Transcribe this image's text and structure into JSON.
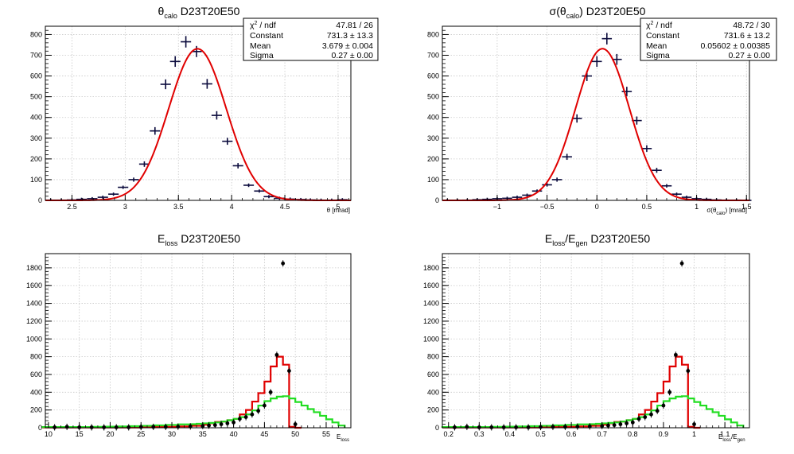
{
  "chart_data": [
    {
      "type": "histogram",
      "title": "θ_calo D23T20E50",
      "xlabel": "θ [mrad]",
      "ylabel": "",
      "xlim": [
        2.25,
        5.12
      ],
      "ylim": [
        0,
        840
      ],
      "xticks": [
        "2.5",
        "3",
        "3.5",
        "4",
        "4.5",
        "5"
      ],
      "yticks": [
        "0",
        "100",
        "200",
        "300",
        "400",
        "500",
        "600",
        "700",
        "800"
      ],
      "grid": true,
      "data_points": {
        "x": [
          2.3,
          2.4,
          2.5,
          2.59,
          2.69,
          2.79,
          2.89,
          2.98,
          3.08,
          3.18,
          3.28,
          3.38,
          3.47,
          3.57,
          3.67,
          3.77,
          3.86,
          3.96,
          4.06,
          4.16,
          4.26,
          4.35,
          4.45,
          4.55,
          4.65,
          4.74,
          4.84,
          4.94,
          5.04
        ],
        "y": [
          1,
          1,
          2,
          5,
          8,
          15,
          30,
          63,
          100,
          175,
          335,
          560,
          670,
          765,
          718,
          562,
          410,
          285,
          167,
          73,
          45,
          18,
          10,
          6,
          4,
          2,
          1,
          1,
          3
        ],
        "xerr": 0.049
      },
      "fit_curve": {
        "function": "gaus",
        "constant": 731.3,
        "mean": 3.679,
        "sigma": 0.27
      },
      "stats_box": {
        "placement": "top-right",
        "rows": [
          {
            "label": "χ² / ndf",
            "value": "47.81 / 26"
          },
          {
            "label": "Constant",
            "value": "731.3 ± 13.3"
          },
          {
            "label": "Mean",
            "value": "3.679 ± 0.004"
          },
          {
            "label": "Sigma",
            "value": "0.27 ± 0.00"
          }
        ]
      },
      "colors": {
        "points": "#0a0a3c",
        "fit": "#e00000"
      }
    },
    {
      "type": "histogram",
      "title": "σ(θ_calo) D23T20E50",
      "xlabel": "σ(θ_calo) [mrad]",
      "ylabel": "",
      "xlim": [
        -1.55,
        1.53
      ],
      "ylim": [
        0,
        840
      ],
      "xticks": [
        "−1",
        "−0.5",
        "0",
        "0.5",
        "1",
        "1.5"
      ],
      "yticks": [
        "0",
        "100",
        "200",
        "300",
        "400",
        "500",
        "600",
        "700",
        "800"
      ],
      "grid": true,
      "data_points": {
        "x": [
          -1.5,
          -1.4,
          -1.3,
          -1.2,
          -1.1,
          -1.0,
          -0.9,
          -0.8,
          -0.7,
          -0.6,
          -0.5,
          -0.4,
          -0.3,
          -0.2,
          -0.1,
          0.0,
          0.1,
          0.2,
          0.3,
          0.4,
          0.5,
          0.6,
          0.7,
          0.8,
          0.9,
          1.0,
          1.1,
          1.2,
          1.3,
          1.4,
          1.5
        ],
        "y": [
          0,
          0,
          1,
          3,
          5,
          8,
          10,
          15,
          25,
          45,
          75,
          100,
          210,
          395,
          600,
          670,
          780,
          680,
          525,
          385,
          250,
          145,
          70,
          30,
          15,
          8,
          5,
          2,
          1,
          1,
          0
        ],
        "xerr": 0.05
      },
      "fit_curve": {
        "function": "gaus",
        "constant": 731.6,
        "mean": 0.05602,
        "sigma": 0.27
      },
      "stats_box": {
        "placement": "top-right",
        "rows": [
          {
            "label": "χ² / ndf",
            "value": "48.72 / 30"
          },
          {
            "label": "Constant",
            "value": "731.6 ± 13.2"
          },
          {
            "label": "Mean",
            "value": "0.05602 ± 0.00385"
          },
          {
            "label": "Sigma",
            "value": "0.27 ± 0.00"
          }
        ]
      },
      "colors": {
        "points": "#0a0a3c",
        "fit": "#e00000"
      }
    },
    {
      "type": "histogram",
      "title": "E_loss D23T20E50",
      "xlabel": "E_loss",
      "ylabel": "",
      "xlim": [
        9.5,
        59.0
      ],
      "ylim": [
        0,
        1960
      ],
      "xticks": [
        "10",
        "15",
        "20",
        "25",
        "30",
        "35",
        "40",
        "45",
        "50",
        "55"
      ],
      "yticks": [
        "0",
        "200",
        "400",
        "600",
        "800",
        "1000",
        "1200",
        "1400",
        "1600",
        "1800"
      ],
      "grid": true,
      "series": [
        {
          "style": "markers",
          "x": [
            11,
            13,
            15,
            17,
            19,
            21,
            23,
            25,
            27,
            29,
            31,
            33,
            35,
            36,
            37,
            38,
            39,
            40,
            41,
            42,
            43,
            44,
            45,
            46,
            47,
            48,
            49,
            50
          ],
          "y": [
            5,
            10,
            5,
            5,
            5,
            5,
            5,
            8,
            10,
            10,
            12,
            15,
            20,
            25,
            30,
            40,
            50,
            60,
            100,
            120,
            150,
            190,
            250,
            400,
            820,
            1850,
            640,
            40
          ]
        },
        {
          "style": "step",
          "edges": [
            9,
            11,
            13,
            15,
            17,
            19,
            21,
            23,
            25,
            27,
            29,
            31,
            33,
            35,
            36,
            37,
            38,
            39,
            40,
            41,
            42,
            43,
            44,
            45,
            46,
            47,
            48,
            49,
            50,
            51
          ],
          "values": [
            3,
            3,
            3,
            3,
            3,
            3,
            3,
            3,
            5,
            8,
            10,
            15,
            22,
            35,
            50,
            65,
            70,
            85,
            100,
            150,
            200,
            295,
            390,
            520,
            690,
            800,
            710,
            10,
            0
          ]
        },
        {
          "style": "step",
          "edges": [
            9,
            11,
            13,
            15,
            17,
            19,
            21,
            23,
            25,
            27,
            29,
            31,
            33,
            34,
            35,
            36,
            37,
            38,
            39,
            40,
            41,
            42,
            43,
            44,
            45,
            46,
            47,
            48,
            49,
            50,
            51,
            52,
            53,
            54,
            55,
            56,
            57,
            58
          ],
          "values": [
            8,
            8,
            8,
            8,
            10,
            12,
            15,
            18,
            22,
            27,
            32,
            38,
            40,
            45,
            50,
            55,
            60,
            70,
            85,
            100,
            120,
            150,
            195,
            250,
            300,
            330,
            350,
            355,
            330,
            290,
            250,
            210,
            175,
            135,
            95,
            60,
            25
          ]
        }
      ],
      "colors": {
        "markers": "#000000",
        "red_step": "#e00000",
        "green_step": "#22dd22"
      }
    },
    {
      "type": "histogram",
      "title": "E_loss/E_gen D23T20E50",
      "xlabel": "E_loss/E_gen",
      "ylabel": "",
      "xlim": [
        0.18,
        1.18
      ],
      "ylim": [
        0,
        1960
      ],
      "xticks": [
        "0.2",
        "0.3",
        "0.4",
        "0.5",
        "0.6",
        "0.7",
        "0.8",
        "0.9",
        "1",
        "1.1"
      ],
      "yticks": [
        "0",
        "200",
        "400",
        "600",
        "800",
        "1000",
        "1200",
        "1400",
        "1600",
        "1800"
      ],
      "grid": true,
      "series": [
        {
          "style": "markers",
          "x": [
            0.22,
            0.26,
            0.3,
            0.34,
            0.38,
            0.42,
            0.46,
            0.5,
            0.54,
            0.58,
            0.62,
            0.66,
            0.7,
            0.72,
            0.74,
            0.76,
            0.78,
            0.8,
            0.82,
            0.84,
            0.86,
            0.88,
            0.9,
            0.92,
            0.94,
            0.96,
            0.98,
            1.0
          ],
          "y": [
            5,
            10,
            5,
            5,
            5,
            5,
            5,
            8,
            10,
            10,
            12,
            15,
            20,
            25,
            30,
            40,
            50,
            60,
            100,
            120,
            150,
            190,
            250,
            400,
            820,
            1850,
            640,
            40
          ]
        },
        {
          "style": "step",
          "edges": [
            0.18,
            0.22,
            0.26,
            0.3,
            0.34,
            0.38,
            0.42,
            0.46,
            0.5,
            0.54,
            0.58,
            0.62,
            0.66,
            0.7,
            0.72,
            0.74,
            0.76,
            0.78,
            0.8,
            0.82,
            0.84,
            0.86,
            0.88,
            0.9,
            0.92,
            0.94,
            0.96,
            0.98,
            1.0,
            1.02
          ],
          "values": [
            3,
            3,
            3,
            3,
            3,
            3,
            3,
            3,
            5,
            8,
            10,
            15,
            22,
            35,
            50,
            65,
            70,
            85,
            100,
            150,
            200,
            295,
            390,
            520,
            690,
            800,
            710,
            10,
            0
          ]
        },
        {
          "style": "step",
          "edges": [
            0.18,
            0.22,
            0.26,
            0.3,
            0.34,
            0.38,
            0.42,
            0.46,
            0.5,
            0.54,
            0.58,
            0.62,
            0.66,
            0.68,
            0.7,
            0.72,
            0.74,
            0.76,
            0.78,
            0.8,
            0.82,
            0.84,
            0.86,
            0.88,
            0.9,
            0.92,
            0.94,
            0.96,
            0.98,
            1.0,
            1.02,
            1.04,
            1.06,
            1.08,
            1.1,
            1.12,
            1.14,
            1.16
          ],
          "values": [
            8,
            8,
            8,
            8,
            10,
            12,
            15,
            18,
            22,
            27,
            32,
            38,
            40,
            45,
            50,
            55,
            60,
            70,
            85,
            100,
            120,
            150,
            195,
            250,
            300,
            330,
            350,
            355,
            330,
            290,
            250,
            210,
            175,
            135,
            95,
            60,
            25
          ]
        }
      ],
      "colors": {
        "markers": "#000000",
        "red_step": "#e00000",
        "green_step": "#22dd22"
      }
    }
  ]
}
